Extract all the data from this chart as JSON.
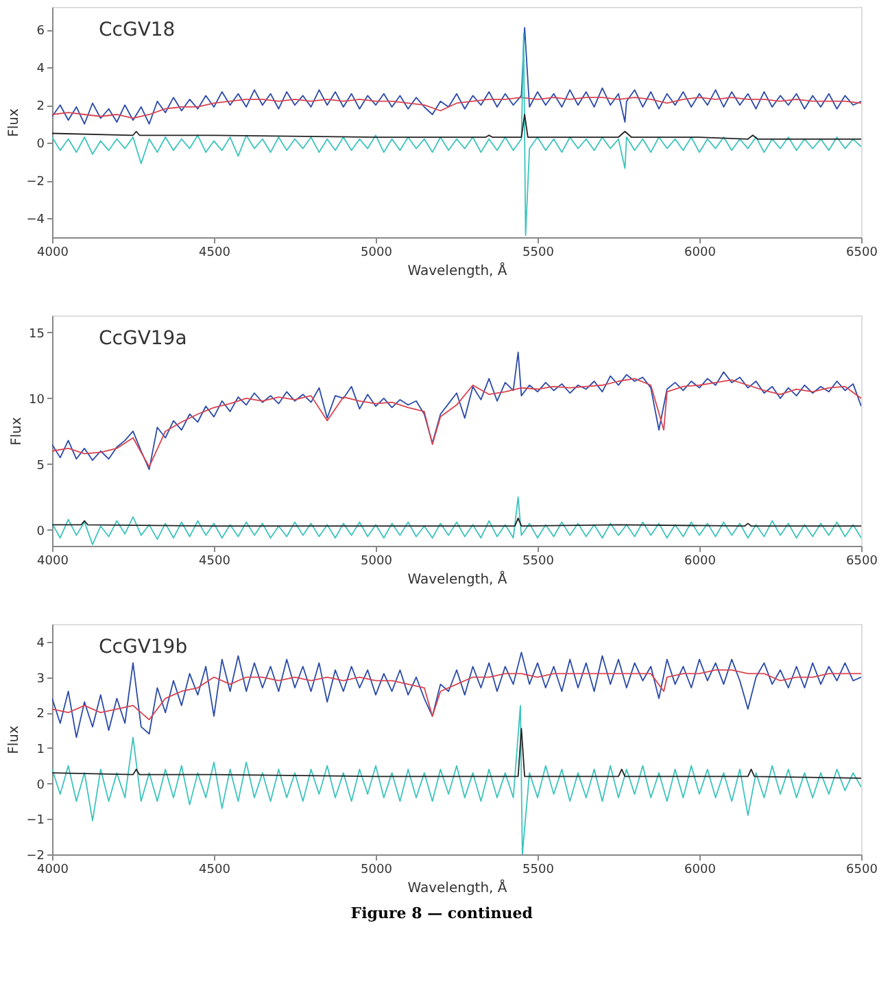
{
  "chart_data": [
    {
      "type": "line",
      "title": "CcGV18",
      "xlabel": "Wavelength, Å",
      "ylabel": "Flux",
      "xlim": [
        4000,
        6500
      ],
      "xticks": [
        4000,
        4500,
        5000,
        5500,
        6000,
        6500
      ],
      "ylim": [
        -5,
        7.2
      ],
      "yticks": [
        -4,
        -2,
        0,
        2,
        4,
        6
      ],
      "grid": false,
      "marker": "none",
      "line_style": "solid",
      "series": [
        {
          "color": "#2a4aa8",
          "x": [
            4000,
            4025,
            4050,
            4075,
            4100,
            4125,
            4150,
            4175,
            4200,
            4225,
            4250,
            4275,
            4300,
            4325,
            4350,
            4375,
            4400,
            4425,
            4450,
            4475,
            4500,
            4525,
            4550,
            4575,
            4600,
            4625,
            4650,
            4675,
            4700,
            4725,
            4750,
            4775,
            4800,
            4825,
            4850,
            4875,
            4900,
            4925,
            4950,
            4975,
            5000,
            5025,
            5050,
            5075,
            5100,
            5125,
            5150,
            5175,
            5200,
            5225,
            5250,
            5275,
            5300,
            5325,
            5350,
            5375,
            5400,
            5425,
            5450,
            5460,
            5475,
            5500,
            5525,
            5550,
            5575,
            5600,
            5625,
            5650,
            5675,
            5700,
            5725,
            5750,
            5770,
            5775,
            5800,
            5825,
            5850,
            5875,
            5900,
            5925,
            5950,
            5975,
            6000,
            6025,
            6050,
            6075,
            6100,
            6125,
            6150,
            6175,
            6200,
            6225,
            6250,
            6275,
            6300,
            6325,
            6350,
            6375,
            6400,
            6425,
            6450,
            6475,
            6500
          ],
          "values": [
            1.4,
            2.0,
            1.2,
            1.9,
            1.0,
            2.1,
            1.3,
            1.8,
            1.1,
            2.0,
            1.2,
            1.9,
            1.0,
            2.2,
            1.6,
            2.4,
            1.7,
            2.3,
            1.8,
            2.5,
            1.9,
            2.7,
            2.0,
            2.6,
            1.9,
            2.8,
            2.0,
            2.6,
            1.8,
            2.7,
            2.0,
            2.5,
            1.9,
            2.8,
            2.0,
            2.7,
            1.9,
            2.6,
            1.8,
            2.5,
            2.0,
            2.6,
            1.9,
            2.5,
            1.8,
            2.4,
            1.9,
            1.5,
            2.2,
            1.9,
            2.6,
            1.8,
            2.5,
            2.0,
            2.7,
            1.9,
            2.6,
            2.0,
            2.5,
            6.1,
            1.9,
            2.7,
            2.0,
            2.6,
            1.9,
            2.8,
            2.0,
            2.7,
            1.9,
            2.9,
            2.0,
            2.6,
            1.1,
            2.2,
            2.8,
            1.9,
            2.7,
            1.8,
            2.6,
            2.0,
            2.7,
            1.9,
            2.6,
            2.0,
            2.8,
            1.9,
            2.7,
            2.0,
            2.6,
            1.8,
            2.7,
            1.9,
            2.5,
            2.0,
            2.6,
            1.8,
            2.5,
            1.9,
            2.6,
            1.8,
            2.5,
            2.0,
            2.2
          ]
        },
        {
          "color": "#d9434f",
          "x": [
            4000,
            4050,
            4100,
            4150,
            4200,
            4250,
            4300,
            4350,
            4400,
            4450,
            4500,
            4550,
            4600,
            4650,
            4700,
            4750,
            4800,
            4850,
            4900,
            4950,
            5000,
            5050,
            5100,
            5150,
            5200,
            5250,
            5300,
            5350,
            5400,
            5450,
            5500,
            5550,
            5600,
            5650,
            5700,
            5750,
            5800,
            5850,
            5900,
            5950,
            6000,
            6050,
            6100,
            6150,
            6200,
            6250,
            6300,
            6350,
            6400,
            6450,
            6500
          ],
          "values": [
            1.5,
            1.6,
            1.5,
            1.4,
            1.5,
            1.3,
            1.5,
            1.8,
            1.9,
            1.9,
            2.1,
            2.2,
            2.3,
            2.3,
            2.2,
            2.3,
            2.2,
            2.3,
            2.2,
            2.3,
            2.2,
            2.2,
            2.1,
            2.0,
            1.7,
            2.1,
            2.2,
            2.3,
            2.3,
            2.4,
            2.3,
            2.4,
            2.3,
            2.4,
            2.4,
            2.3,
            2.4,
            2.3,
            2.1,
            2.3,
            2.4,
            2.3,
            2.4,
            2.3,
            2.3,
            2.2,
            2.3,
            2.2,
            2.2,
            2.2,
            2.1
          ]
        },
        {
          "color": "#3cc4bc",
          "x": [
            4000,
            4025,
            4050,
            4075,
            4100,
            4125,
            4150,
            4175,
            4200,
            4225,
            4250,
            4275,
            4300,
            4325,
            4350,
            4375,
            4400,
            4425,
            4450,
            4475,
            4500,
            4525,
            4550,
            4575,
            4600,
            4625,
            4650,
            4675,
            4700,
            4725,
            4750,
            4775,
            4800,
            4825,
            4850,
            4875,
            4900,
            4925,
            4950,
            4975,
            5000,
            5025,
            5050,
            5075,
            5100,
            5125,
            5150,
            5175,
            5200,
            5225,
            5250,
            5275,
            5300,
            5325,
            5350,
            5375,
            5400,
            5425,
            5450,
            5457,
            5463,
            5475,
            5500,
            5525,
            5550,
            5575,
            5600,
            5625,
            5650,
            5675,
            5700,
            5725,
            5750,
            5770,
            5775,
            5800,
            5825,
            5850,
            5875,
            5900,
            5925,
            5950,
            5975,
            6000,
            6025,
            6050,
            6075,
            6100,
            6125,
            6150,
            6175,
            6200,
            6225,
            6250,
            6275,
            6300,
            6325,
            6350,
            6375,
            6400,
            6425,
            6450,
            6475,
            6500
          ],
          "values": [
            0.3,
            -0.4,
            0.2,
            -0.5,
            0.3,
            -0.6,
            0.1,
            -0.4,
            0.2,
            -0.3,
            0.3,
            -1.1,
            0.2,
            -0.5,
            0.3,
            -0.4,
            0.2,
            -0.3,
            0.4,
            -0.5,
            0.1,
            -0.4,
            0.3,
            -0.7,
            0.4,
            -0.3,
            0.2,
            -0.5,
            0.3,
            -0.4,
            0.2,
            -0.3,
            0.3,
            -0.5,
            0.2,
            -0.4,
            0.3,
            -0.4,
            0.2,
            -0.3,
            0.4,
            -0.5,
            0.2,
            -0.4,
            0.3,
            -0.3,
            0.2,
            -0.5,
            0.3,
            -0.4,
            0.2,
            -0.3,
            0.3,
            -0.5,
            0.2,
            -0.4,
            0.3,
            -0.4,
            0.2,
            5.8,
            -4.9,
            -0.3,
            0.3,
            -0.4,
            0.2,
            -0.5,
            0.3,
            -0.3,
            0.2,
            -0.4,
            0.3,
            -0.3,
            0.2,
            -1.35,
            0.3,
            -0.4,
            0.2,
            -0.5,
            0.3,
            -0.3,
            0.2,
            -0.4,
            0.3,
            -0.5,
            0.2,
            -0.3,
            0.3,
            -0.4,
            0.2,
            -0.3,
            0.3,
            -0.5,
            0.2,
            -0.3,
            0.3,
            -0.4,
            0.2,
            -0.3,
            0.2,
            -0.4,
            0.3,
            -0.3,
            0.2,
            -0.2
          ]
        },
        {
          "color": "#222222",
          "x": [
            4000,
            4250,
            4260,
            4270,
            4500,
            5000,
            5340,
            5350,
            5360,
            5450,
            5460,
            5470,
            5750,
            5770,
            5790,
            6000,
            6150,
            6165,
            6180,
            6500
          ],
          "values": [
            0.5,
            0.4,
            0.6,
            0.4,
            0.4,
            0.3,
            0.3,
            0.4,
            0.3,
            0.3,
            1.5,
            0.3,
            0.3,
            0.6,
            0.3,
            0.3,
            0.2,
            0.4,
            0.2,
            0.2
          ]
        }
      ]
    },
    {
      "type": "line",
      "title": "CcGV19a",
      "xlabel": "Wavelength, Å",
      "ylabel": "Flux",
      "xlim": [
        4000,
        6500
      ],
      "xticks": [
        4000,
        4500,
        5000,
        5500,
        6000,
        6500
      ],
      "ylim": [
        -1.2,
        16.3
      ],
      "yticks": [
        0,
        5,
        10,
        15
      ],
      "grid": false,
      "marker": "none",
      "line_style": "solid",
      "x": [
        4000,
        4025,
        4050,
        4075,
        4100,
        4125,
        4150,
        4175,
        4200,
        4225,
        4250,
        4275,
        4300,
        4325,
        4350,
        4375,
        4400,
        4425,
        4450,
        4475,
        4500,
        4525,
        4550,
        4575,
        4600,
        4625,
        4650,
        4675,
        4700,
        4725,
        4750,
        4775,
        4800,
        4825,
        4850,
        4875,
        4900,
        4925,
        4950,
        4975,
        5000,
        5025,
        5050,
        5075,
        5100,
        5125,
        5150,
        5175,
        5200,
        5225,
        5250,
        5275,
        5300,
        5325,
        5350,
        5375,
        5400,
        5425,
        5440,
        5450,
        5475,
        5500,
        5525,
        5550,
        5575,
        5600,
        5625,
        5650,
        5675,
        5700,
        5725,
        5750,
        5775,
        5800,
        5825,
        5850,
        5875,
        5900,
        5925,
        5950,
        5975,
        6000,
        6025,
        6050,
        6075,
        6100,
        6125,
        6150,
        6175,
        6200,
        6225,
        6250,
        6275,
        6300,
        6325,
        6350,
        6375,
        6400,
        6425,
        6450,
        6475,
        6500
      ],
      "series": [
        {
          "color": "#2a4aa8",
          "values": [
            6.5,
            5.5,
            6.8,
            5.4,
            6.2,
            5.3,
            6.0,
            5.4,
            6.3,
            6.8,
            7.5,
            6.0,
            4.6,
            7.8,
            7.0,
            8.3,
            7.6,
            8.8,
            8.2,
            9.4,
            8.6,
            9.8,
            9.0,
            10.1,
            9.5,
            10.4,
            9.7,
            10.2,
            9.6,
            10.5,
            9.8,
            10.3,
            9.7,
            10.8,
            8.5,
            10.2,
            10.0,
            10.9,
            9.2,
            10.3,
            9.4,
            10.0,
            9.3,
            9.9,
            9.5,
            9.8,
            8.8,
            6.6,
            8.8,
            9.6,
            10.4,
            8.5,
            10.9,
            9.9,
            11.5,
            9.8,
            11.2,
            10.6,
            13.5,
            10.2,
            11.0,
            10.5,
            11.2,
            10.6,
            11.1,
            10.4,
            11.0,
            10.7,
            11.3,
            10.5,
            11.7,
            11.0,
            11.8,
            11.3,
            11.6,
            10.8,
            7.6,
            10.7,
            11.2,
            10.6,
            11.3,
            10.8,
            11.5,
            11.0,
            12.0,
            11.2,
            11.6,
            10.8,
            11.3,
            10.4,
            10.9,
            10.0,
            10.8,
            10.2,
            11.0,
            10.4,
            10.9,
            10.5,
            11.3,
            10.6,
            11.1,
            9.4
          ]
        },
        {
          "color": "#d9434f",
          "x": [
            4000,
            4050,
            4100,
            4150,
            4200,
            4250,
            4300,
            4350,
            4400,
            4450,
            4500,
            4550,
            4600,
            4650,
            4700,
            4750,
            4800,
            4850,
            4900,
            4950,
            5000,
            5050,
            5100,
            5150,
            5175,
            5200,
            5250,
            5300,
            5350,
            5400,
            5450,
            5500,
            5550,
            5600,
            5650,
            5700,
            5750,
            5800,
            5850,
            5890,
            5900,
            5950,
            6000,
            6050,
            6100,
            6150,
            6200,
            6250,
            6300,
            6350,
            6400,
            6450,
            6500
          ],
          "values": [
            6.0,
            6.2,
            5.8,
            5.9,
            6.2,
            7.0,
            4.8,
            7.5,
            8.2,
            8.8,
            9.3,
            9.6,
            10.0,
            9.8,
            10.1,
            9.9,
            10.2,
            8.3,
            10.1,
            9.8,
            9.6,
            9.7,
            9.3,
            9.0,
            6.5,
            8.6,
            9.5,
            11.0,
            10.3,
            10.5,
            10.8,
            10.7,
            10.9,
            10.8,
            10.9,
            11.0,
            11.3,
            11.5,
            11.0,
            7.6,
            10.5,
            10.9,
            11.0,
            11.2,
            11.4,
            11.0,
            10.6,
            10.3,
            10.7,
            10.5,
            10.8,
            10.9,
            10.0
          ]
        },
        {
          "color": "#3cc4bc",
          "values": [
            0.5,
            -0.6,
            0.8,
            -0.4,
            0.6,
            -1.1,
            0.3,
            -0.5,
            0.7,
            -0.3,
            1.0,
            -0.4,
            0.4,
            -0.7,
            0.5,
            -0.6,
            0.6,
            -0.5,
            0.7,
            -0.4,
            0.5,
            -0.6,
            0.4,
            -0.5,
            0.6,
            -0.4,
            0.5,
            -0.6,
            0.3,
            -0.5,
            0.6,
            -0.4,
            0.5,
            -0.5,
            0.4,
            -0.6,
            0.5,
            -0.4,
            0.6,
            -0.5,
            0.4,
            -0.6,
            0.5,
            -0.4,
            0.6,
            -0.5,
            0.3,
            -0.6,
            0.5,
            -0.4,
            0.6,
            -0.5,
            0.4,
            -0.6,
            0.7,
            -0.5,
            0.4,
            -0.6,
            2.5,
            -0.4,
            0.5,
            -0.6,
            0.4,
            -0.5,
            0.6,
            -0.4,
            0.5,
            -0.5,
            0.4,
            -0.6,
            0.5,
            -0.4,
            0.4,
            -0.5,
            0.6,
            -0.4,
            0.5,
            -0.6,
            0.4,
            -0.5,
            0.6,
            -0.4,
            0.5,
            -0.5,
            0.6,
            -0.4,
            0.5,
            -0.6,
            0.4,
            -0.5,
            0.7,
            -0.4,
            0.5,
            -0.6,
            0.4,
            -0.5,
            0.5,
            -0.4,
            0.6,
            -0.5,
            0.4,
            -0.6
          ]
        },
        {
          "color": "#222222",
          "x": [
            4000,
            4090,
            4100,
            4110,
            4500,
            5000,
            5430,
            5440,
            5450,
            5750,
            6140,
            6150,
            6160,
            6500
          ],
          "values": [
            0.4,
            0.4,
            0.7,
            0.4,
            0.3,
            0.3,
            0.3,
            0.9,
            0.3,
            0.4,
            0.3,
            0.5,
            0.3,
            0.3
          ]
        }
      ]
    },
    {
      "type": "line",
      "title": "CcGV19b",
      "xlabel": "Wavelength, Å",
      "ylabel": "Flux",
      "xlim": [
        4000,
        6500
      ],
      "xticks": [
        4000,
        4500,
        5000,
        5500,
        6000,
        6500
      ],
      "ylim": [
        -2,
        4.5
      ],
      "yticks": [
        -2,
        -1,
        0,
        1,
        2,
        3,
        4
      ],
      "grid": false,
      "marker": "none",
      "line_style": "solid",
      "annotations": [
        "Figure 8 — continued"
      ],
      "series": [
        {
          "color": "#2a4aa8",
          "x": [
            4000,
            4025,
            4050,
            4075,
            4100,
            4125,
            4150,
            4175,
            4200,
            4225,
            4250,
            4275,
            4300,
            4325,
            4350,
            4375,
            4400,
            4425,
            4450,
            4475,
            4500,
            4525,
            4550,
            4575,
            4600,
            4625,
            4650,
            4675,
            4700,
            4725,
            4750,
            4775,
            4800,
            4825,
            4850,
            4875,
            4900,
            4925,
            4950,
            4975,
            5000,
            5025,
            5050,
            5075,
            5100,
            5125,
            5150,
            5175,
            5200,
            5225,
            5250,
            5275,
            5300,
            5325,
            5350,
            5375,
            5400,
            5425,
            5450,
            5475,
            5500,
            5525,
            5550,
            5575,
            5600,
            5625,
            5650,
            5675,
            5700,
            5725,
            5750,
            5775,
            5800,
            5825,
            5850,
            5875,
            5900,
            5925,
            5950,
            5975,
            6000,
            6025,
            6050,
            6075,
            6100,
            6125,
            6150,
            6175,
            6200,
            6225,
            6250,
            6275,
            6300,
            6325,
            6350,
            6375,
            6400,
            6425,
            6450,
            6475,
            6500
          ],
          "values": [
            2.4,
            1.7,
            2.6,
            1.3,
            2.3,
            1.6,
            2.5,
            1.5,
            2.4,
            1.7,
            3.4,
            1.6,
            1.4,
            2.7,
            2.0,
            2.9,
            2.2,
            3.1,
            2.5,
            3.3,
            1.9,
            3.5,
            2.6,
            3.6,
            2.6,
            3.4,
            2.7,
            3.3,
            2.6,
            3.5,
            2.7,
            3.3,
            2.6,
            3.4,
            2.3,
            3.2,
            2.6,
            3.3,
            2.7,
            3.2,
            2.5,
            3.1,
            2.6,
            3.2,
            2.5,
            3.0,
            2.4,
            1.9,
            2.8,
            2.6,
            3.2,
            2.5,
            3.3,
            2.7,
            3.4,
            2.6,
            3.3,
            2.8,
            3.7,
            2.8,
            3.4,
            2.7,
            3.3,
            2.6,
            3.5,
            2.7,
            3.4,
            2.6,
            3.6,
            2.8,
            3.5,
            2.7,
            3.4,
            2.9,
            3.3,
            2.4,
            3.5,
            2.8,
            3.3,
            2.7,
            3.5,
            2.9,
            3.4,
            2.8,
            3.5,
            2.9,
            2.1,
            3.0,
            3.4,
            2.8,
            3.2,
            2.7,
            3.3,
            2.7,
            3.4,
            2.8,
            3.3,
            2.9,
            3.4,
            2.9,
            3.0
          ]
        },
        {
          "color": "#d9434f",
          "x": [
            4000,
            4050,
            4100,
            4150,
            4200,
            4250,
            4300,
            4350,
            4400,
            4450,
            4500,
            4550,
            4600,
            4650,
            4700,
            4750,
            4800,
            4850,
            4900,
            4950,
            5000,
            5050,
            5100,
            5150,
            5175,
            5200,
            5250,
            5300,
            5350,
            5400,
            5450,
            5500,
            5550,
            5600,
            5650,
            5700,
            5750,
            5800,
            5850,
            5890,
            5900,
            5950,
            6000,
            6050,
            6100,
            6150,
            6200,
            6250,
            6300,
            6350,
            6400,
            6450,
            6500
          ],
          "values": [
            2.1,
            2.0,
            2.2,
            2.0,
            2.1,
            2.2,
            1.8,
            2.4,
            2.6,
            2.7,
            3.0,
            2.8,
            3.0,
            3.0,
            2.9,
            3.0,
            2.9,
            3.0,
            2.9,
            3.0,
            2.9,
            2.9,
            2.8,
            2.7,
            1.9,
            2.6,
            2.8,
            3.0,
            3.0,
            3.1,
            3.1,
            3.0,
            3.1,
            3.1,
            3.1,
            3.1,
            3.1,
            3.1,
            3.1,
            2.6,
            3.0,
            3.1,
            3.1,
            3.2,
            3.2,
            3.1,
            3.1,
            2.9,
            3.0,
            3.0,
            3.1,
            3.1,
            3.1
          ]
        },
        {
          "color": "#3cc4bc",
          "x": [
            4000,
            4025,
            4050,
            4075,
            4100,
            4125,
            4150,
            4175,
            4200,
            4225,
            4250,
            4275,
            4300,
            4325,
            4350,
            4375,
            4400,
            4425,
            4450,
            4475,
            4500,
            4525,
            4550,
            4575,
            4600,
            4625,
            4650,
            4675,
            4700,
            4725,
            4750,
            4775,
            4800,
            4825,
            4850,
            4875,
            4900,
            4925,
            4950,
            4975,
            5000,
            5025,
            5050,
            5075,
            5100,
            5125,
            5150,
            5175,
            5200,
            5225,
            5250,
            5275,
            5300,
            5325,
            5350,
            5375,
            5400,
            5425,
            5447,
            5453,
            5475,
            5500,
            5525,
            5550,
            5575,
            5600,
            5625,
            5650,
            5675,
            5700,
            5725,
            5750,
            5775,
            5800,
            5825,
            5850,
            5875,
            5900,
            5925,
            5950,
            5975,
            6000,
            6025,
            6050,
            6075,
            6100,
            6125,
            6150,
            6175,
            6200,
            6225,
            6250,
            6275,
            6300,
            6325,
            6350,
            6375,
            6400,
            6425,
            6450,
            6475,
            6500
          ],
          "values": [
            0.4,
            -0.3,
            0.5,
            -0.5,
            0.3,
            -1.05,
            0.4,
            -0.5,
            0.3,
            -0.4,
            1.3,
            -0.5,
            0.3,
            -0.5,
            0.4,
            -0.4,
            0.5,
            -0.6,
            0.3,
            -0.4,
            0.6,
            -0.7,
            0.4,
            -0.5,
            0.6,
            -0.4,
            0.3,
            -0.5,
            0.4,
            -0.4,
            0.3,
            -0.5,
            0.4,
            -0.3,
            0.5,
            -0.4,
            0.3,
            -0.5,
            0.4,
            -0.3,
            0.5,
            -0.4,
            0.3,
            -0.5,
            0.4,
            -0.4,
            0.3,
            -0.5,
            0.4,
            -0.3,
            0.5,
            -0.4,
            0.3,
            -0.5,
            0.4,
            -0.4,
            0.3,
            -0.4,
            2.2,
            -2.0,
            0.3,
            -0.4,
            0.5,
            -0.3,
            0.4,
            -0.5,
            0.3,
            -0.4,
            0.4,
            -0.5,
            0.5,
            -0.4,
            0.4,
            -0.3,
            0.5,
            -0.4,
            0.3,
            -0.5,
            0.4,
            -0.4,
            0.5,
            -0.3,
            0.4,
            -0.4,
            0.3,
            -0.5,
            0.4,
            -0.9,
            0.3,
            -0.4,
            0.5,
            -0.3,
            0.4,
            -0.4,
            0.3,
            -0.4,
            0.3,
            -0.3,
            0.4,
            -0.2,
            0.3,
            -0.1
          ]
        },
        {
          "color": "#222222",
          "x": [
            4000,
            4250,
            4260,
            4270,
            4500,
            5000,
            5440,
            5450,
            5460,
            5750,
            5760,
            5770,
            6150,
            6160,
            6170,
            6500
          ],
          "values": [
            0.3,
            0.25,
            0.4,
            0.25,
            0.25,
            0.2,
            0.2,
            1.55,
            0.2,
            0.2,
            0.4,
            0.2,
            0.2,
            0.4,
            0.2,
            0.15
          ]
        }
      ]
    }
  ]
}
